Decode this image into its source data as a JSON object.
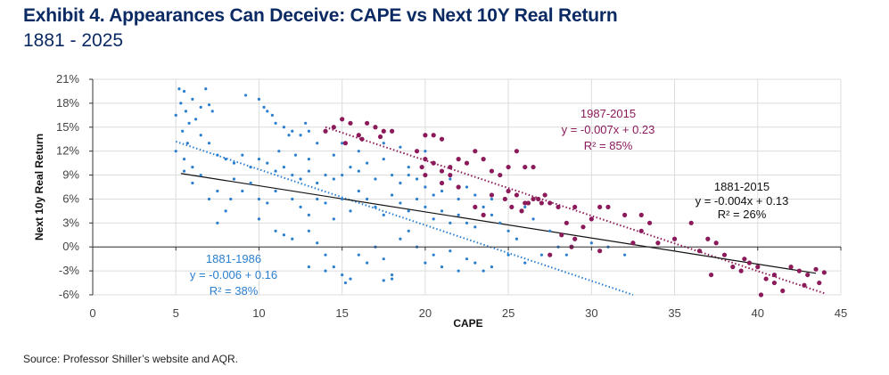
{
  "title": "Exhibit 4. Appearances Can Deceive: CAPE vs Next 10Y Real Return",
  "subtitle": "1881 - 2025",
  "source": "Source: Professor Shiller’s website and AQR.",
  "chart_data": {
    "type": "scatter",
    "xlabel": "CAPE",
    "ylabel": "Next 10y Real Return",
    "xlim": [
      0,
      45
    ],
    "ylim": [
      -6,
      21
    ],
    "x_ticks": [
      "0",
      "5",
      "10",
      "15",
      "20",
      "25",
      "30",
      "35",
      "40",
      "45"
    ],
    "y_ticks": [
      "-6%",
      "-3%",
      "0%",
      "3%",
      "6%",
      "9%",
      "12%",
      "15%",
      "18%",
      "21%"
    ],
    "grid": true,
    "colors": {
      "blue": "#2b7fcf",
      "purple": "#8b1a5a",
      "overall": "#111111",
      "title": "#0b2a63"
    },
    "series": [
      {
        "name": "1881-1986",
        "color": "#2b7fcf",
        "points": [
          [
            5,
            16.5
          ],
          [
            5.2,
            19.8
          ],
          [
            5.5,
            19.5
          ],
          [
            5.3,
            18
          ],
          [
            5.6,
            17
          ],
          [
            6,
            18.5
          ],
          [
            6.5,
            17.5
          ],
          [
            6.8,
            19.8
          ],
          [
            7,
            17.8
          ],
          [
            7.2,
            17
          ],
          [
            5.8,
            15.5
          ],
          [
            6.2,
            16
          ],
          [
            5.4,
            14.5
          ],
          [
            6.5,
            14
          ],
          [
            7,
            13
          ],
          [
            7.5,
            11.5
          ],
          [
            8,
            11
          ],
          [
            5.5,
            11
          ],
          [
            6,
            10
          ],
          [
            5,
            12
          ],
          [
            5.7,
            13
          ],
          [
            9.2,
            19
          ],
          [
            10,
            18.5
          ],
          [
            10.3,
            17.5
          ],
          [
            10.8,
            16.5
          ],
          [
            11,
            15.5
          ],
          [
            11.5,
            15
          ],
          [
            12,
            14.5
          ],
          [
            12.5,
            14
          ],
          [
            13,
            14.5
          ],
          [
            12.8,
            15.5
          ],
          [
            11.8,
            14
          ],
          [
            10.5,
            17
          ],
          [
            13.5,
            13
          ],
          [
            8.5,
            10.5
          ],
          [
            9,
            11.5
          ],
          [
            9.5,
            10
          ],
          [
            10,
            11
          ],
          [
            10.5,
            10.5
          ],
          [
            11,
            9.5
          ],
          [
            11.5,
            10
          ],
          [
            12,
            9
          ],
          [
            12.5,
            8.5
          ],
          [
            13,
            9.5
          ],
          [
            13.5,
            8
          ],
          [
            14,
            9
          ],
          [
            14.5,
            8.5
          ],
          [
            15,
            9
          ],
          [
            15.5,
            10
          ],
          [
            16,
            9.5
          ],
          [
            16.5,
            10.5
          ],
          [
            17,
            8.5
          ],
          [
            17.5,
            11
          ],
          [
            18,
            9
          ],
          [
            18.5,
            8
          ],
          [
            19,
            9
          ],
          [
            19.5,
            8.5
          ],
          [
            20,
            7.5
          ],
          [
            20.5,
            6.5
          ],
          [
            21,
            7
          ],
          [
            21.5,
            8.5
          ],
          [
            22,
            6
          ],
          [
            22.5,
            7.5
          ],
          [
            23,
            6.5
          ],
          [
            23.5,
            5
          ],
          [
            24,
            6
          ],
          [
            9,
            7
          ],
          [
            9.5,
            8
          ],
          [
            10,
            6
          ],
          [
            10.5,
            5.5
          ],
          [
            11,
            7
          ],
          [
            12,
            6
          ],
          [
            12.5,
            5
          ],
          [
            13,
            4
          ],
          [
            13.5,
            6
          ],
          [
            14,
            5.5
          ],
          [
            14.5,
            3.5
          ],
          [
            15,
            6
          ],
          [
            15.5,
            4.5
          ],
          [
            16,
            7
          ],
          [
            16.5,
            6
          ],
          [
            17,
            5
          ],
          [
            17.5,
            4
          ],
          [
            18,
            6.5
          ],
          [
            18.5,
            5.5
          ],
          [
            19,
            4.5
          ],
          [
            19.5,
            6
          ],
          [
            20,
            5
          ],
          [
            20.5,
            3.5
          ],
          [
            21,
            4.5
          ],
          [
            21.5,
            3
          ],
          [
            22,
            4
          ],
          [
            22.5,
            3
          ],
          [
            23,
            2.5
          ],
          [
            24,
            4
          ],
          [
            24.5,
            3
          ],
          [
            25,
            2
          ],
          [
            7.5,
            3
          ],
          [
            8,
            4.5
          ],
          [
            8.3,
            6
          ],
          [
            10,
            3.5
          ],
          [
            11,
            2
          ],
          [
            11.5,
            1.5
          ],
          [
            12,
            1
          ],
          [
            13,
            2
          ],
          [
            13.5,
            0.5
          ],
          [
            14,
            -1
          ],
          [
            14.5,
            -2.5
          ],
          [
            15,
            -3.5
          ],
          [
            15.5,
            -4
          ],
          [
            16,
            -1
          ],
          [
            16.5,
            -2
          ],
          [
            17,
            0
          ],
          [
            17.5,
            -1.5
          ],
          [
            18,
            -3.5
          ],
          [
            18.5,
            1
          ],
          [
            19,
            2
          ],
          [
            19.5,
            0
          ],
          [
            20,
            -2
          ],
          [
            20.5,
            -1
          ],
          [
            21,
            -2.5
          ],
          [
            21.5,
            -0.5
          ],
          [
            22,
            -3
          ],
          [
            22.5,
            -1.5
          ],
          [
            23,
            -2
          ],
          [
            23.5,
            -3
          ],
          [
            24,
            -2.5
          ],
          [
            25,
            -1
          ],
          [
            26,
            -2
          ],
          [
            27,
            -1
          ],
          [
            28,
            0
          ],
          [
            29,
            1
          ],
          [
            30,
            0.5
          ],
          [
            31,
            0
          ],
          [
            26.5,
            3.5
          ],
          [
            27.5,
            2
          ],
          [
            28.5,
            -1
          ],
          [
            32,
            -1
          ],
          [
            15.2,
            -4.5
          ],
          [
            14,
            -3
          ],
          [
            13,
            -2.5
          ],
          [
            18,
            -4
          ],
          [
            17.5,
            -4.2
          ],
          [
            25.5,
            1
          ],
          [
            26,
            5
          ],
          [
            27,
            5.5
          ],
          [
            6,
            8
          ],
          [
            6.5,
            9
          ],
          [
            7.5,
            7
          ],
          [
            8.5,
            8.5
          ],
          [
            7,
            6
          ],
          [
            5.5,
            9.5
          ],
          [
            11.2,
            12
          ],
          [
            12.2,
            11.5
          ],
          [
            14.5,
            11.5
          ],
          [
            16,
            12
          ],
          [
            17.5,
            13
          ],
          [
            18.5,
            12.5
          ],
          [
            20,
            12
          ],
          [
            15,
            13
          ],
          [
            19,
            10
          ],
          [
            13,
            11
          ]
        ],
        "trend": {
          "equation": "y = -0.006 + 0.16",
          "r2": "R² = 38%",
          "label": "1881-1986",
          "from": [
            5,
            13.2
          ],
          "to": [
            32.5,
            -6
          ],
          "style": "dotted"
        }
      },
      {
        "name": "1987-2015",
        "color": "#8b1a5a",
        "points": [
          [
            14,
            14.5
          ],
          [
            14.5,
            15
          ],
          [
            15,
            16
          ],
          [
            15.5,
            15.5
          ],
          [
            16,
            14
          ],
          [
            16.5,
            15.5
          ],
          [
            17,
            15
          ],
          [
            17.5,
            14.5
          ],
          [
            18,
            14.5
          ],
          [
            15.2,
            13
          ],
          [
            16.2,
            13.5
          ],
          [
            17.3,
            13.8
          ],
          [
            20,
            14
          ],
          [
            20.5,
            14
          ],
          [
            21,
            13.5
          ],
          [
            19.5,
            12
          ],
          [
            20,
            11
          ],
          [
            20.5,
            10.5
          ],
          [
            21,
            9.5
          ],
          [
            21.5,
            9
          ],
          [
            22,
            11
          ],
          [
            22.5,
            10.5
          ],
          [
            23,
            12
          ],
          [
            23.5,
            11
          ],
          [
            24,
            9.5
          ],
          [
            20,
            9
          ],
          [
            21,
            8
          ],
          [
            22,
            7.5
          ],
          [
            21.5,
            10
          ],
          [
            19.8,
            10
          ],
          [
            24.5,
            9
          ],
          [
            25,
            10
          ],
          [
            25.5,
            12
          ],
          [
            26,
            10
          ],
          [
            26.5,
            10
          ],
          [
            24.8,
            6
          ],
          [
            25,
            7
          ],
          [
            25.5,
            6.5
          ],
          [
            26,
            5.5
          ],
          [
            26.5,
            6
          ],
          [
            27,
            5.5
          ],
          [
            27.5,
            5.5
          ],
          [
            25.2,
            5
          ],
          [
            25.8,
            4.5
          ],
          [
            26.2,
            5.5
          ],
          [
            27.2,
            6.5
          ],
          [
            26.8,
            6
          ],
          [
            28,
            5
          ],
          [
            23,
            5
          ],
          [
            24,
            6.5
          ],
          [
            23.5,
            4
          ],
          [
            28.5,
            3
          ],
          [
            29,
            5
          ],
          [
            30,
            3.5
          ],
          [
            30.5,
            5
          ],
          [
            31,
            5
          ],
          [
            32,
            4
          ],
          [
            33,
            4
          ],
          [
            33.5,
            3
          ],
          [
            32.5,
            0.5
          ],
          [
            33,
            2
          ],
          [
            34,
            0.5
          ],
          [
            35,
            1
          ],
          [
            36,
            3
          ],
          [
            36.5,
            -0.5
          ],
          [
            37,
            1
          ],
          [
            37.5,
            0.5
          ],
          [
            37.2,
            -3.5
          ],
          [
            38,
            -1
          ],
          [
            38.5,
            -2.5
          ],
          [
            39,
            -3
          ],
          [
            39.2,
            -1.5
          ],
          [
            39.5,
            -2
          ],
          [
            40,
            -2.5
          ],
          [
            41,
            -3.5
          ],
          [
            41.5,
            -5.5
          ],
          [
            42,
            -2.5
          ],
          [
            42.5,
            -3
          ],
          [
            43,
            -3.5
          ],
          [
            43.5,
            -2.8
          ],
          [
            44,
            -3.2
          ],
          [
            43.7,
            -4.5
          ],
          [
            42.8,
            -4.8
          ],
          [
            41,
            -4.5
          ],
          [
            40.5,
            -4
          ],
          [
            40.2,
            -6
          ],
          [
            29,
            1
          ],
          [
            28.2,
            1.5
          ],
          [
            28.8,
            0
          ],
          [
            27.5,
            -1
          ],
          [
            29.5,
            2.5
          ],
          [
            30.5,
            -0.5
          ]
        ],
        "trend": {
          "equation": "y = -0.007x + 0.23",
          "r2": "R² = 85%",
          "label": "1987-2015",
          "from": [
            14,
            15
          ],
          "to": [
            44,
            -5.8
          ],
          "style": "dotted"
        }
      }
    ],
    "overall_trend": {
      "label": "1881-2015",
      "equation": "y = -0.004x + 0.13",
      "r2": "R² = 26%",
      "from": [
        5.3,
        9.2
      ],
      "to": [
        43.5,
        -3.3
      ],
      "style": "solid"
    }
  }
}
